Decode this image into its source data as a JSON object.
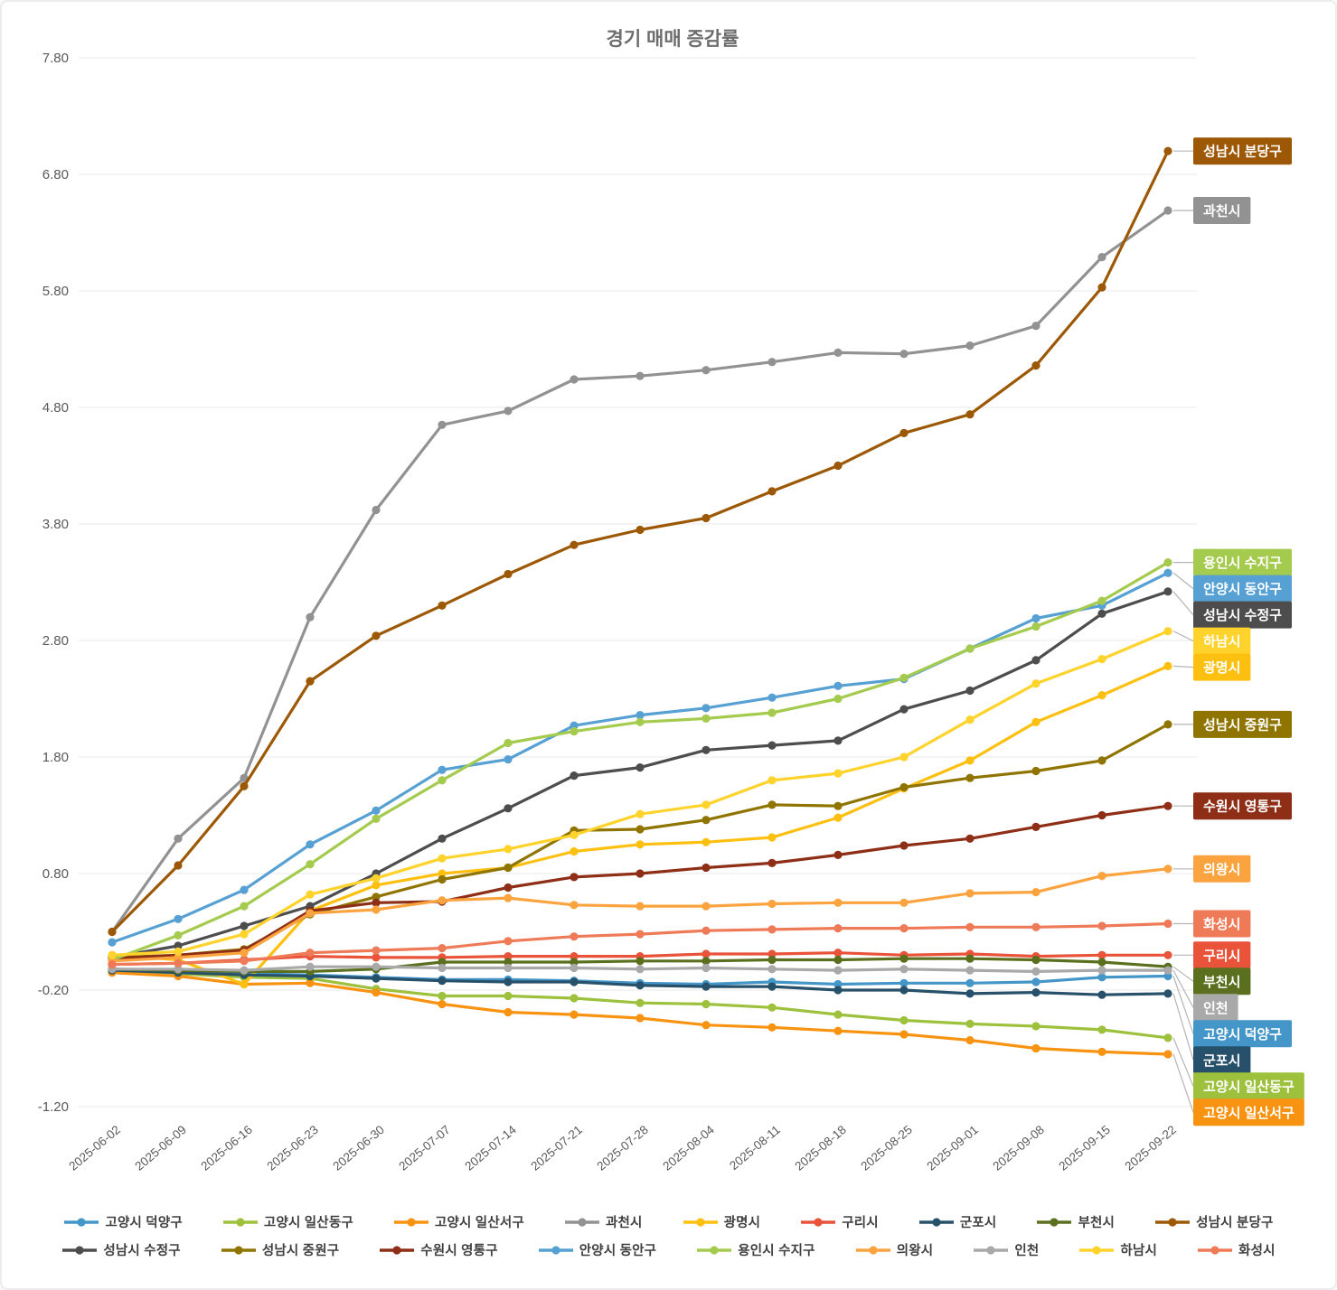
{
  "title": "경기 매매 증감률",
  "colors": {
    "grid": "#e9e9e9",
    "axis_label": "#595959",
    "title": "#6d6d6d",
    "legend_text": "#3f3f3f",
    "leader_line": "#b5b5b5",
    "label_text": "#ffffff"
  },
  "chart_data": {
    "type": "line",
    "title": "경기 매매 증감률",
    "xlabel": "",
    "ylabel": "",
    "ylim": [
      -1.2,
      7.8
    ],
    "yticks": [
      7.8,
      6.8,
      5.8,
      4.8,
      3.8,
      2.8,
      1.8,
      0.8,
      -0.2,
      -1.2
    ],
    "grid": "horizontal",
    "legend_position": "bottom",
    "marker": "circle",
    "end_labels": true,
    "x": [
      "2025-06-02",
      "2025-06-09",
      "2025-06-16",
      "2025-06-23",
      "2025-06-30",
      "2025-07-07",
      "2025-07-14",
      "2025-07-21",
      "2025-07-28",
      "2025-08-04",
      "2025-08-11",
      "2025-08-18",
      "2025-08-25",
      "2025-09-01",
      "2025-09-08",
      "2025-09-15",
      "2025-09-22"
    ],
    "series": [
      {
        "name": "고양시 덕양구",
        "color": "#4596c8",
        "values": [
          -0.02,
          -0.04,
          -0.06,
          -0.07,
          -0.09,
          -0.11,
          -0.11,
          -0.12,
          -0.14,
          -0.15,
          -0.13,
          -0.15,
          -0.14,
          -0.14,
          -0.13,
          -0.09,
          -0.08
        ]
      },
      {
        "name": "고양시 일산동구",
        "color": "#9dc13c",
        "values": [
          -0.04,
          -0.06,
          -0.09,
          -0.1,
          -0.19,
          -0.25,
          -0.25,
          -0.27,
          -0.31,
          -0.32,
          -0.35,
          -0.41,
          -0.46,
          -0.49,
          -0.51,
          -0.54,
          -0.61
        ]
      },
      {
        "name": "고양시 일산서구",
        "color": "#f79311",
        "values": [
          -0.05,
          -0.08,
          -0.15,
          -0.14,
          -0.22,
          -0.32,
          -0.39,
          -0.41,
          -0.44,
          -0.5,
          -0.52,
          -0.55,
          -0.58,
          -0.63,
          -0.7,
          -0.73,
          -0.75
        ]
      },
      {
        "name": "과천시",
        "color": "#929292",
        "values": [
          0.3,
          1.1,
          1.62,
          3.0,
          3.92,
          4.65,
          4.77,
          5.04,
          5.07,
          5.12,
          5.19,
          5.27,
          5.26,
          5.33,
          5.5,
          6.09,
          6.49
        ]
      },
      {
        "name": "광명시",
        "color": "#fdc011",
        "values": [
          0.1,
          0.06,
          -0.15,
          0.48,
          0.7,
          0.8,
          0.85,
          0.99,
          1.05,
          1.07,
          1.11,
          1.28,
          1.53,
          1.77,
          2.1,
          2.33,
          2.58
        ]
      },
      {
        "name": "구리시",
        "color": "#e8533a",
        "values": [
          0.02,
          0.03,
          0.06,
          0.09,
          0.08,
          0.08,
          0.09,
          0.09,
          0.09,
          0.11,
          0.11,
          0.12,
          0.1,
          0.11,
          0.09,
          0.1,
          0.1
        ]
      },
      {
        "name": "군포시",
        "color": "#27506b",
        "values": [
          -0.03,
          -0.05,
          -0.07,
          -0.08,
          -0.1,
          -0.12,
          -0.13,
          -0.13,
          -0.16,
          -0.17,
          -0.17,
          -0.2,
          -0.2,
          -0.23,
          -0.22,
          -0.24,
          -0.23
        ]
      },
      {
        "name": "부천시",
        "color": "#5b701e",
        "values": [
          -0.02,
          -0.03,
          -0.04,
          -0.04,
          -0.02,
          0.04,
          0.04,
          0.04,
          0.05,
          0.05,
          0.06,
          0.06,
          0.07,
          0.07,
          0.06,
          0.04,
          0.0
        ]
      },
      {
        "name": "성남시 분당구",
        "color": "#9c5804",
        "values": [
          0.3,
          0.87,
          1.55,
          2.45,
          2.84,
          3.1,
          3.37,
          3.62,
          3.75,
          3.85,
          4.08,
          4.3,
          4.58,
          4.74,
          5.16,
          5.83,
          7.0
        ]
      },
      {
        "name": "성남시 수정구",
        "color": "#4d4d4d",
        "values": [
          0.08,
          0.18,
          0.35,
          0.52,
          0.8,
          1.1,
          1.36,
          1.64,
          1.71,
          1.86,
          1.9,
          1.94,
          2.21,
          2.37,
          2.63,
          3.03,
          3.22
        ]
      },
      {
        "name": "성남시 중원구",
        "color": "#8f7500",
        "values": [
          0.08,
          0.1,
          0.15,
          0.45,
          0.6,
          0.75,
          0.85,
          1.17,
          1.18,
          1.26,
          1.39,
          1.38,
          1.54,
          1.62,
          1.68,
          1.77,
          2.08
        ]
      },
      {
        "name": "수원시 영통구",
        "color": "#8e2e16",
        "values": [
          0.07,
          0.1,
          0.14,
          0.48,
          0.55,
          0.56,
          0.68,
          0.77,
          0.8,
          0.85,
          0.89,
          0.96,
          1.04,
          1.1,
          1.2,
          1.3,
          1.38
        ]
      },
      {
        "name": "안양시 동안구",
        "color": "#56a0d3",
        "values": [
          0.21,
          0.41,
          0.66,
          1.05,
          1.34,
          1.69,
          1.78,
          2.07,
          2.16,
          2.22,
          2.31,
          2.41,
          2.47,
          2.73,
          2.99,
          3.1,
          3.38
        ]
      },
      {
        "name": "용인시 수지구",
        "color": "#a4ca4e",
        "values": [
          0.06,
          0.27,
          0.52,
          0.88,
          1.27,
          1.6,
          1.92,
          2.02,
          2.1,
          2.13,
          2.18,
          2.3,
          2.48,
          2.73,
          2.92,
          3.14,
          3.47
        ]
      },
      {
        "name": "의왕시",
        "color": "#fba43f",
        "values": [
          0.05,
          0.08,
          0.12,
          0.46,
          0.49,
          0.57,
          0.59,
          0.53,
          0.52,
          0.52,
          0.54,
          0.55,
          0.55,
          0.63,
          0.64,
          0.78,
          0.84
        ]
      },
      {
        "name": "인천",
        "color": "#a9a9a9",
        "values": [
          -0.02,
          -0.02,
          -0.03,
          0.0,
          0.0,
          -0.01,
          -0.01,
          -0.01,
          -0.02,
          -0.01,
          -0.02,
          -0.03,
          -0.02,
          -0.03,
          -0.04,
          -0.03,
          -0.03
        ]
      },
      {
        "name": "하남시",
        "color": "#ffd32b",
        "values": [
          0.1,
          0.13,
          0.28,
          0.62,
          0.76,
          0.93,
          1.01,
          1.13,
          1.31,
          1.39,
          1.6,
          1.66,
          1.8,
          2.12,
          2.43,
          2.64,
          2.88
        ]
      },
      {
        "name": "화성시",
        "color": "#ef7a57",
        "values": [
          0.02,
          0.03,
          0.05,
          0.12,
          0.14,
          0.16,
          0.22,
          0.26,
          0.28,
          0.31,
          0.32,
          0.33,
          0.33,
          0.34,
          0.34,
          0.35,
          0.37
        ]
      }
    ],
    "legend_rows": [
      [
        "고양시 덕양구",
        "고양시 일산동구",
        "고양시 일산서구",
        "과천시",
        "광명시",
        "구리시",
        "군포시",
        "부천시",
        "성남시 분당구"
      ],
      [
        "성남시 수정구",
        "성남시 중원구",
        "수원시 영통구",
        "안양시 동안구",
        "용인시 수지구",
        "의왕시",
        "인천",
        "하남시",
        "화성시"
      ]
    ]
  }
}
